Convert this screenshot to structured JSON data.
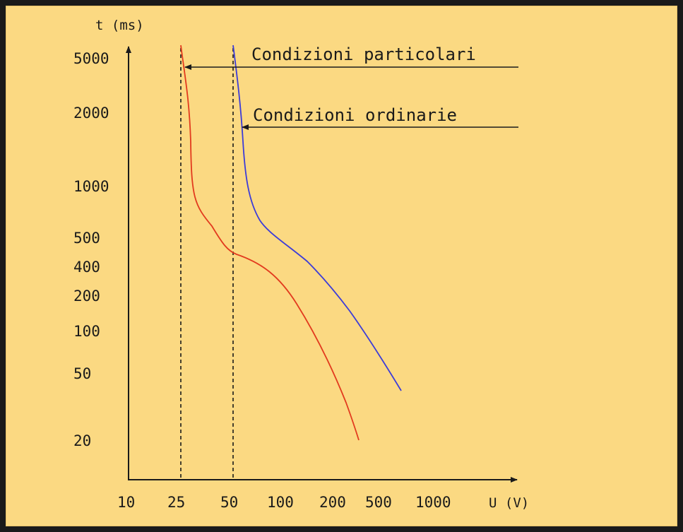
{
  "colors": {
    "background": "#fbd982",
    "frame": "#1a1a1a",
    "axis": "#1a1a1a",
    "red_curve": "#e23a1e",
    "blue_curve": "#3b3bd9"
  },
  "chart_data": {
    "type": "line",
    "title": "",
    "xlabel": "U (V)",
    "ylabel": "t (ms)",
    "x_ticks": [
      "10",
      "25",
      "50",
      "100",
      "200",
      "500",
      "1000"
    ],
    "y_ticks": [
      "5000",
      "2000",
      "1000",
      "500",
      "400",
      "200",
      "100",
      "50",
      "20"
    ],
    "reference_lines": [
      {
        "x": "25",
        "style": "dashed"
      },
      {
        "x": "50",
        "style": "dashed"
      }
    ],
    "annotations": [
      {
        "text": "Condizioni particolari",
        "series": "red"
      },
      {
        "text": "Condizioni ordinarie",
        "series": "blue"
      }
    ],
    "series": [
      {
        "color": "red",
        "points": [
          {
            "U": "25",
            "t": "5000"
          },
          {
            "U": "25",
            "t": "2000"
          },
          {
            "U": "25",
            "t": "1000"
          },
          {
            "U": "25",
            "t": "500"
          },
          {
            "U": "50",
            "t": "400"
          },
          {
            "U": "100",
            "t": "200"
          },
          {
            "U": "200",
            "t": "100"
          },
          {
            "U": "200",
            "t": "50"
          },
          {
            "U": "200",
            "t": "20"
          }
        ]
      },
      {
        "color": "blue",
        "points": [
          {
            "U": "50",
            "t": "5000"
          },
          {
            "U": "50",
            "t": "2000"
          },
          {
            "U": "50",
            "t": "1000"
          },
          {
            "U": "50",
            "t": "500"
          },
          {
            "U": "100",
            "t": "400"
          },
          {
            "U": "200",
            "t": "200"
          },
          {
            "U": "500",
            "t": "100"
          },
          {
            "U": "500",
            "t": "50"
          }
        ]
      }
    ],
    "grid": false,
    "legend": "none"
  }
}
